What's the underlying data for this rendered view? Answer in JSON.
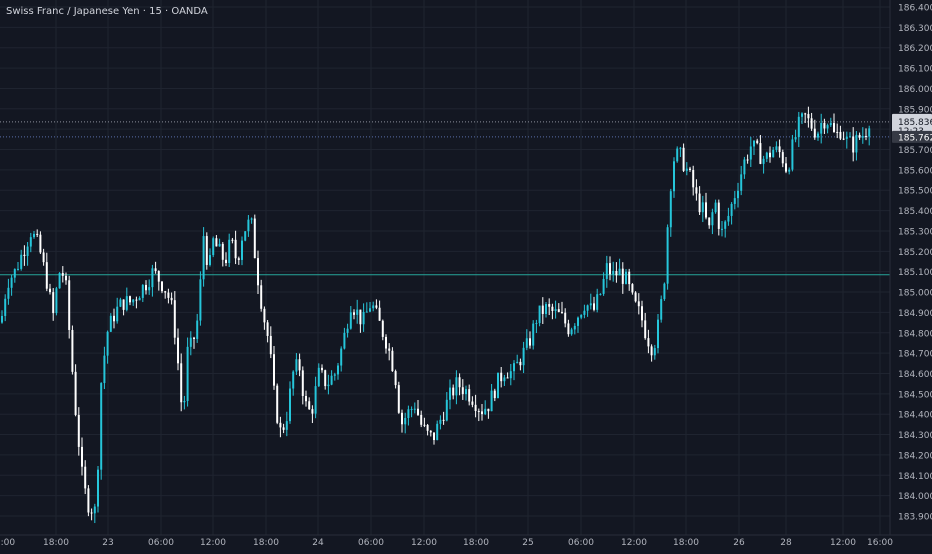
{
  "header": {
    "title": "Swiss Franc / Japanese Yen · 15 · OANDA"
  },
  "colors": {
    "background": "#131722",
    "grid": "#1f2430",
    "bull": "#26c6da",
    "bear": "#ffffff",
    "axis_text": "#b2b5be",
    "level_line": "#26a69a",
    "price_line": "#5a6ea8",
    "current_price_badge": "#d1d4dc",
    "close_badge": "#363a45"
  },
  "price_axis": {
    "ticks": [
      "186.400",
      "186.300",
      "186.200",
      "186.100",
      "186.000",
      "185.900",
      "185.800",
      "185.700",
      "185.600",
      "185.500",
      "185.400",
      "185.300",
      "185.200",
      "185.100",
      "185.000",
      "184.900",
      "184.800",
      "184.700",
      "184.600",
      "184.500",
      "184.400",
      "184.300",
      "184.200",
      "184.100",
      "184.000",
      "183.900"
    ],
    "current_price": "185.836",
    "countdown": "12:23",
    "secondary_price": "185.762"
  },
  "time_axis": {
    "labels": [
      "2:00",
      "18:00",
      "23",
      "06:00",
      "12:00",
      "18:00",
      "24",
      "06:00",
      "12:00",
      "18:00",
      "25",
      "06:00",
      "12:00",
      "18:00",
      "26",
      "28",
      "12:00",
      "16:00"
    ]
  },
  "chart_data": {
    "type": "candlestick",
    "title": "Swiss Franc / Japanese Yen · 15 · OANDA",
    "ylim": [
      183.86,
      186.44
    ],
    "horizontal_levels": [
      185.085
    ],
    "price_lines": [
      185.836,
      185.762
    ],
    "anchors": [
      [
        0,
        184.85
      ],
      [
        6,
        185.05
      ],
      [
        14,
        185.1
      ],
      [
        22,
        185.2
      ],
      [
        30,
        185.3
      ],
      [
        38,
        185.22
      ],
      [
        46,
        185.05
      ],
      [
        52,
        184.88
      ],
      [
        58,
        185.1
      ],
      [
        64,
        185.08
      ],
      [
        70,
        184.7
      ],
      [
        74,
        184.45
      ],
      [
        78,
        184.25
      ],
      [
        82,
        184.05
      ],
      [
        88,
        183.95
      ],
      [
        95,
        183.92
      ],
      [
        100,
        184.55
      ],
      [
        106,
        184.8
      ],
      [
        114,
        184.9
      ],
      [
        122,
        184.95
      ],
      [
        130,
        184.95
      ],
      [
        138,
        185.0
      ],
      [
        146,
        185.05
      ],
      [
        152,
        185.1
      ],
      [
        160,
        185.05
      ],
      [
        166,
        185.0
      ],
      [
        172,
        184.9
      ],
      [
        178,
        184.6
      ],
      [
        182,
        184.35
      ],
      [
        186,
        184.7
      ],
      [
        192,
        184.75
      ],
      [
        198,
        184.9
      ],
      [
        202,
        185.3
      ],
      [
        208,
        185.1
      ],
      [
        212,
        185.25
      ],
      [
        218,
        185.2
      ],
      [
        224,
        185.15
      ],
      [
        230,
        185.25
      ],
      [
        236,
        185.15
      ],
      [
        242,
        185.3
      ],
      [
        250,
        185.35
      ],
      [
        256,
        185.1
      ],
      [
        262,
        184.9
      ],
      [
        268,
        184.75
      ],
      [
        274,
        184.45
      ],
      [
        280,
        184.3
      ],
      [
        286,
        184.4
      ],
      [
        292,
        184.6
      ],
      [
        298,
        184.65
      ],
      [
        304,
        184.45
      ],
      [
        310,
        184.4
      ],
      [
        318,
        184.6
      ],
      [
        326,
        184.55
      ],
      [
        334,
        184.6
      ],
      [
        342,
        184.75
      ],
      [
        350,
        184.95
      ],
      [
        356,
        184.9
      ],
      [
        362,
        184.85
      ],
      [
        370,
        184.95
      ],
      [
        378,
        184.85
      ],
      [
        386,
        184.75
      ],
      [
        394,
        184.6
      ],
      [
        400,
        184.35
      ],
      [
        406,
        184.4
      ],
      [
        414,
        184.45
      ],
      [
        420,
        184.35
      ],
      [
        426,
        184.3
      ],
      [
        432,
        184.28
      ],
      [
        440,
        184.38
      ],
      [
        448,
        184.48
      ],
      [
        456,
        184.55
      ],
      [
        464,
        184.52
      ],
      [
        472,
        184.48
      ],
      [
        480,
        184.42
      ],
      [
        488,
        184.45
      ],
      [
        496,
        184.55
      ],
      [
        504,
        184.62
      ],
      [
        512,
        184.6
      ],
      [
        520,
        184.68
      ],
      [
        528,
        184.75
      ],
      [
        536,
        184.88
      ],
      [
        544,
        184.92
      ],
      [
        552,
        184.9
      ],
      [
        560,
        184.88
      ],
      [
        568,
        184.82
      ],
      [
        576,
        184.88
      ],
      [
        584,
        184.95
      ],
      [
        592,
        184.9
      ],
      [
        600,
        185.0
      ],
      [
        606,
        185.12
      ],
      [
        612,
        185.08
      ],
      [
        618,
        185.1
      ],
      [
        626,
        185.05
      ],
      [
        632,
        184.95
      ],
      [
        640,
        184.88
      ],
      [
        646,
        184.78
      ],
      [
        652,
        184.72
      ],
      [
        658,
        184.85
      ],
      [
        664,
        185.1
      ],
      [
        668,
        185.45
      ],
      [
        672,
        185.65
      ],
      [
        678,
        185.68
      ],
      [
        684,
        185.62
      ],
      [
        690,
        185.55
      ],
      [
        696,
        185.45
      ],
      [
        702,
        185.4
      ],
      [
        708,
        185.3
      ],
      [
        714,
        185.45
      ],
      [
        720,
        185.28
      ],
      [
        726,
        185.35
      ],
      [
        732,
        185.45
      ],
      [
        738,
        185.55
      ],
      [
        744,
        185.65
      ],
      [
        750,
        185.72
      ],
      [
        758,
        185.68
      ],
      [
        764,
        185.65
      ],
      [
        772,
        185.7
      ],
      [
        780,
        185.68
      ],
      [
        786,
        185.6
      ],
      [
        792,
        185.72
      ],
      [
        798,
        185.82
      ],
      [
        804,
        185.86
      ],
      [
        810,
        185.82
      ],
      [
        816,
        185.78
      ],
      [
        822,
        185.85
      ],
      [
        828,
        185.84
      ],
      [
        834,
        185.76
      ],
      [
        840,
        185.8
      ],
      [
        846,
        185.74
      ],
      [
        852,
        185.72
      ],
      [
        858,
        185.76
      ],
      [
        864,
        185.78
      ],
      [
        869,
        185.86
      ]
    ]
  }
}
